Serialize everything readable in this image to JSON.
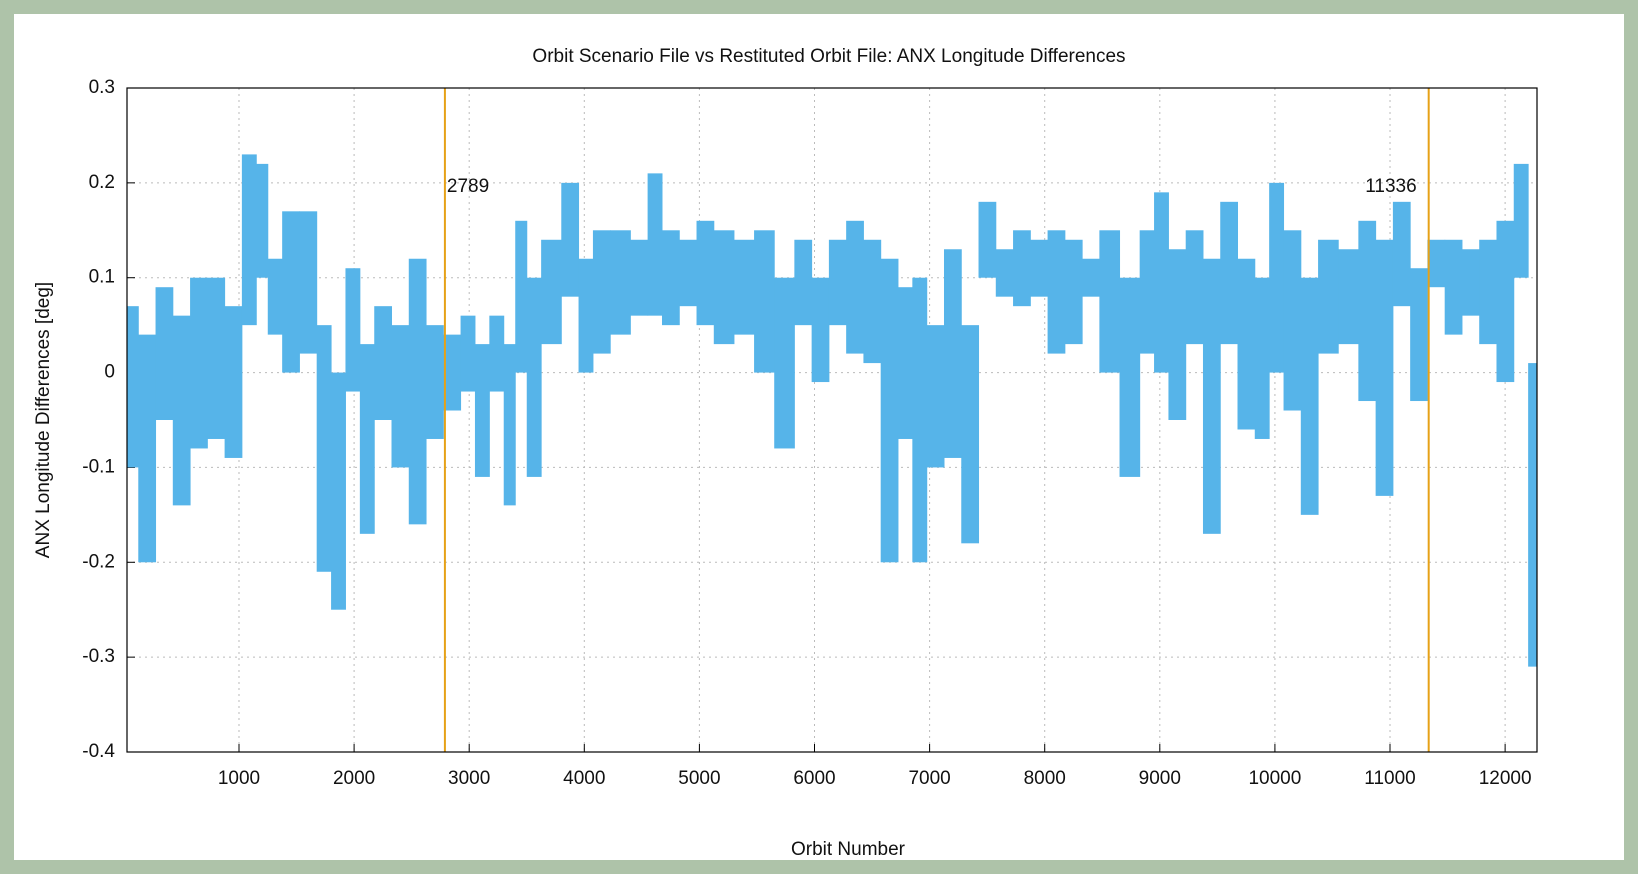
{
  "chart_data": {
    "type": "band",
    "title": "Orbit Scenario File vs Restituted Orbit File: ANX Longitude Differences",
    "xlabel": "Orbit Number",
    "ylabel": "ANX Longitude Differences [deg]",
    "color": "#56b4e9",
    "vline_color": "#e6a117",
    "grid": true,
    "xlim": [
      27,
      12277
    ],
    "ylim": [
      -0.4,
      0.3
    ],
    "xticks": [
      1000,
      2000,
      3000,
      4000,
      5000,
      6000,
      7000,
      8000,
      9000,
      10000,
      11000,
      12000
    ],
    "yticks": [
      -0.4,
      -0.3,
      -0.2,
      -0.1,
      0,
      0.1,
      0.2,
      0.3
    ],
    "vlines": [
      2789,
      11336
    ],
    "x": [
      50,
      200,
      350,
      500,
      650,
      800,
      950,
      1100,
      1200,
      1300,
      1450,
      1600,
      1750,
      1850,
      2000,
      2100,
      2250,
      2400,
      2550,
      2700,
      2850,
      3000,
      3100,
      3250,
      3350,
      3450,
      3550,
      3700,
      3900,
      4000,
      4150,
      4300,
      4500,
      4600,
      4750,
      4900,
      5050,
      5200,
      5400,
      5550,
      5750,
      5900,
      6050,
      6200,
      6350,
      6500,
      6650,
      6800,
      6900,
      7050,
      7200,
      7350,
      7500,
      7650,
      7800,
      7950,
      8100,
      8250,
      8400,
      8550,
      8750,
      8900,
      9000,
      9150,
      9300,
      9450,
      9600,
      9750,
      9900,
      10000,
      10150,
      10300,
      10450,
      10650,
      10800,
      10950,
      11100,
      11250,
      11400,
      11550,
      11700,
      11850,
      12000,
      12150,
      12250
    ],
    "low": [
      -0.1,
      -0.2,
      -0.05,
      -0.14,
      -0.08,
      -0.07,
      -0.09,
      0.05,
      0.1,
      0.04,
      0.0,
      0.02,
      -0.21,
      -0.25,
      -0.02,
      -0.17,
      -0.05,
      -0.1,
      -0.16,
      -0.07,
      -0.04,
      -0.02,
      -0.11,
      -0.02,
      -0.14,
      0.0,
      -0.11,
      0.03,
      0.08,
      0.0,
      0.02,
      0.04,
      0.06,
      0.06,
      0.05,
      0.07,
      0.05,
      0.03,
      0.04,
      0.0,
      -0.08,
      0.05,
      -0.01,
      0.05,
      0.02,
      0.01,
      -0.2,
      -0.07,
      -0.2,
      -0.1,
      -0.09,
      -0.18,
      0.1,
      0.08,
      0.07,
      0.08,
      0.02,
      0.03,
      0.08,
      0.0,
      -0.11,
      0.02,
      0.0,
      -0.05,
      0.03,
      -0.17,
      0.03,
      -0.06,
      -0.07,
      0.0,
      -0.04,
      -0.15,
      0.02,
      0.03,
      -0.03,
      -0.13,
      0.07,
      -0.03,
      0.09,
      0.04,
      0.06,
      0.03,
      -0.01,
      0.1,
      -0.31
    ],
    "high": [
      0.07,
      0.04,
      0.09,
      0.06,
      0.1,
      0.1,
      0.07,
      0.23,
      0.22,
      0.12,
      0.17,
      0.17,
      0.05,
      0.0,
      0.11,
      0.03,
      0.07,
      0.05,
      0.12,
      0.05,
      0.04,
      0.06,
      0.03,
      0.06,
      0.03,
      0.16,
      0.1,
      0.14,
      0.2,
      0.12,
      0.15,
      0.15,
      0.14,
      0.21,
      0.15,
      0.14,
      0.16,
      0.15,
      0.14,
      0.15,
      0.1,
      0.14,
      0.1,
      0.14,
      0.16,
      0.14,
      0.12,
      0.09,
      0.1,
      0.05,
      0.13,
      0.05,
      0.18,
      0.13,
      0.15,
      0.14,
      0.15,
      0.14,
      0.12,
      0.15,
      0.1,
      0.15,
      0.19,
      0.13,
      0.15,
      0.12,
      0.18,
      0.12,
      0.1,
      0.2,
      0.15,
      0.1,
      0.14,
      0.13,
      0.16,
      0.14,
      0.18,
      0.11,
      0.14,
      0.14,
      0.13,
      0.14,
      0.16,
      0.22,
      0.01
    ]
  }
}
